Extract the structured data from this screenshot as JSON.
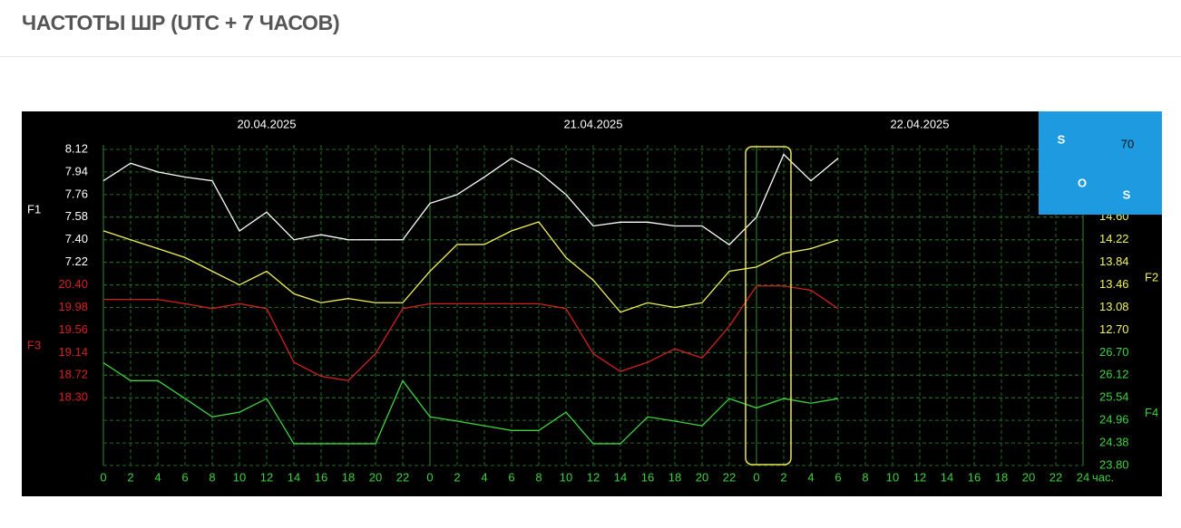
{
  "header": {
    "title": "ЧАСТОТЫ ШР (UTC + 7 ЧАСОВ)"
  },
  "logo": {
    "texts": [
      "S",
      "70",
      "O",
      "S"
    ]
  },
  "chart_data": {
    "type": "line",
    "dates": [
      "20.04.2025",
      "21.04.2025",
      "22.04.2025"
    ],
    "x_unit": "час.",
    "xlim": [
      0,
      72
    ],
    "xticks": [
      0,
      2,
      4,
      6,
      8,
      10,
      12,
      14,
      16,
      18,
      20,
      22,
      {
        "value": 24,
        "label": "0"
      },
      {
        "value": 26,
        "label": "2"
      },
      {
        "value": 28,
        "label": "4"
      },
      {
        "value": 30,
        "label": "6"
      },
      {
        "value": 32,
        "label": "8"
      },
      {
        "value": 34,
        "label": "10"
      },
      {
        "value": 36,
        "label": "12"
      },
      {
        "value": 38,
        "label": "14"
      },
      {
        "value": 40,
        "label": "16"
      },
      {
        "value": 42,
        "label": "18"
      },
      {
        "value": 44,
        "label": "20"
      },
      {
        "value": 46,
        "label": "22"
      },
      {
        "value": 48,
        "label": "0"
      },
      {
        "value": 50,
        "label": "2"
      },
      {
        "value": 52,
        "label": "4"
      },
      {
        "value": 54,
        "label": "6"
      },
      {
        "value": 56,
        "label": "8"
      },
      {
        "value": 58,
        "label": "10"
      },
      {
        "value": 60,
        "label": "12"
      },
      {
        "value": 62,
        "label": "14"
      },
      {
        "value": 64,
        "label": "16"
      },
      {
        "value": 66,
        "label": "18"
      },
      {
        "value": 68,
        "label": "20"
      },
      {
        "value": 70,
        "label": "22"
      },
      {
        "value": 72,
        "label": "24"
      }
    ],
    "grid": true,
    "x": [
      0,
      2,
      4,
      6,
      8,
      10,
      12,
      14,
      16,
      18,
      20,
      22,
      24,
      26,
      28,
      30,
      32,
      34,
      36,
      38,
      40,
      42,
      44,
      46,
      48,
      50,
      52,
      54
    ],
    "series": [
      {
        "name": "F1",
        "color": "#ffffff",
        "axis": "y",
        "ylim": [
          7.22,
          8.12
        ],
        "yticks": [
          8.12,
          7.94,
          7.76,
          7.58,
          {
            "value": 7.4,
            "label": "7.40"
          },
          7.22
        ],
        "values": [
          7.87,
          8.01,
          7.94,
          7.9,
          7.87,
          7.47,
          7.62,
          7.4,
          7.44,
          7.4,
          7.4,
          7.4,
          7.69,
          7.76,
          7.9,
          8.05,
          7.94,
          7.76,
          7.51,
          7.54,
          7.54,
          7.51,
          7.51,
          7.36,
          7.58,
          8.08,
          7.87,
          8.05
        ]
      },
      {
        "name": "F2",
        "color": "#f2f25a",
        "axis": "y2",
        "ylim": [
          12.7,
          14.6
        ],
        "yticks": [
          {
            "value": 14.6,
            "label": "14.60"
          },
          14.22,
          13.84,
          13.46,
          13.08,
          {
            "value": 12.7,
            "label": "12.70"
          }
        ],
        "values": [
          14.37,
          14.22,
          14.07,
          13.92,
          13.69,
          13.46,
          13.69,
          13.31,
          13.16,
          13.23,
          13.16,
          13.16,
          13.69,
          14.14,
          14.14,
          14.37,
          14.52,
          13.92,
          13.54,
          13.0,
          13.16,
          13.08,
          13.16,
          13.69,
          13.76,
          13.99,
          14.07,
          14.22
        ]
      },
      {
        "name": "F3",
        "color": "#d42020",
        "axis": "y",
        "ylim": [
          18.3,
          20.4
        ],
        "yticks": [
          {
            "value": 20.4,
            "label": "20.40"
          },
          19.98,
          19.56,
          19.14,
          18.72,
          {
            "value": 18.3,
            "label": "18.30"
          }
        ],
        "values": [
          20.13,
          20.13,
          20.13,
          20.05,
          19.96,
          20.05,
          19.96,
          18.96,
          18.7,
          18.62,
          19.12,
          19.96,
          20.05,
          20.05,
          20.05,
          20.05,
          20.05,
          19.96,
          19.12,
          18.79,
          18.96,
          19.21,
          19.04,
          19.63,
          20.38,
          20.38,
          20.3,
          19.96
        ]
      },
      {
        "name": "F4",
        "color": "#3ed23e",
        "axis": "y2",
        "ylim": [
          23.8,
          26.7
        ],
        "yticks": [
          {
            "value": 26.7,
            "label": "26.70"
          },
          26.12,
          25.54,
          24.96,
          24.38,
          {
            "value": 23.8,
            "label": "23.80"
          }
        ],
        "values": [
          26.44,
          25.98,
          25.98,
          25.52,
          25.05,
          25.17,
          25.52,
          24.36,
          24.36,
          24.36,
          24.36,
          25.98,
          25.05,
          24.94,
          24.82,
          24.7,
          24.7,
          25.17,
          24.36,
          24.36,
          25.05,
          24.94,
          24.82,
          25.52,
          25.28,
          25.52,
          25.4,
          25.52
        ]
      }
    ]
  }
}
